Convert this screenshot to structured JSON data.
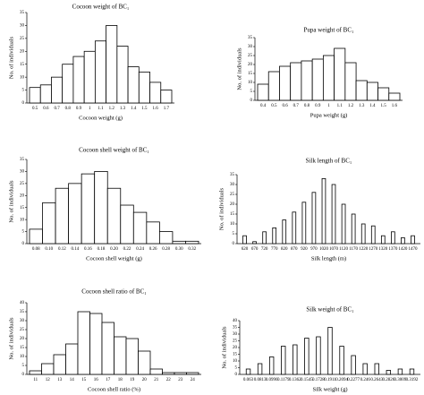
{
  "chart_data": [
    {
      "type": "bar",
      "title": "Cocoon weight of BC₁",
      "y_label": "No. of individuals",
      "x_label": "Cocoon weight (g)",
      "categories": [
        "0.5",
        "0.6",
        "0.7",
        "0.8",
        "0.9",
        "1",
        "1.1",
        "1.2",
        "1.3",
        "1.4",
        "1.5",
        "1.6",
        "1.7"
      ],
      "values": [
        6,
        7,
        10,
        15,
        18,
        20,
        24,
        30,
        22,
        14,
        12,
        8,
        5
      ],
      "color": "#ffffff",
      "ylim": [
        0,
        35
      ],
      "yticks": [
        0,
        5,
        10,
        15,
        20,
        25,
        30,
        35
      ]
    },
    {
      "type": "bar",
      "title": "Pupa weight of BC₁",
      "y_label": "No. of individuals",
      "x_label": "Pupa weight (g)",
      "categories": [
        "0.4",
        "0.5",
        "0.6",
        "0.7",
        "0.8",
        "0.9",
        "1",
        "1.1",
        "1.2",
        "1.3",
        "1.4",
        "1.5",
        "1.6"
      ],
      "values": [
        9,
        16,
        19,
        21,
        22,
        23,
        25,
        29,
        21,
        11,
        10,
        7,
        4
      ],
      "color": "#ffffff",
      "ylim": [
        0,
        35
      ],
      "yticks": [
        0,
        5,
        10,
        15,
        20,
        25,
        30,
        35
      ]
    },
    {
      "type": "bar",
      "title": "Cocoon shell weight of BC₁",
      "y_label": "No. of individuals",
      "x_label": "Cocoon shell weight (g)",
      "categories": [
        "0.08",
        "0.10",
        "0.12",
        "0.14",
        "0.16",
        "0.18",
        "0.20",
        "0.22",
        "0.24",
        "0.26",
        "0.28",
        "0.30",
        "0.32"
      ],
      "values": [
        6,
        17,
        23,
        25,
        29,
        30,
        23,
        16,
        13,
        9,
        5,
        1,
        1
      ],
      "color": "#ffffff",
      "ylim": [
        0,
        35
      ],
      "yticks": [
        0,
        5,
        10,
        15,
        20,
        25,
        30,
        35
      ]
    },
    {
      "type": "bar",
      "title": "Silk length of BC₁",
      "y_label": "No. of individuals",
      "x_label": "Silk length (m)",
      "categories": [
        "620",
        "670",
        "720",
        "770",
        "820",
        "870",
        "920",
        "970",
        "1020",
        "1070",
        "1120",
        "1170",
        "1220",
        "1270",
        "1320",
        "1370",
        "1420",
        "1470"
      ],
      "values": [
        4,
        1,
        6,
        8,
        12,
        16,
        21,
        26,
        33,
        30,
        20,
        15,
        10,
        9,
        4,
        6,
        3,
        4
      ],
      "color": "#ffffff",
      "ylim": [
        0,
        35
      ],
      "yticks": [
        0,
        5,
        10,
        15,
        20,
        25,
        30,
        35
      ]
    },
    {
      "type": "bar",
      "title": "Cocoon shell ratio of BC₁",
      "y_label": "No. of individuals",
      "x_label": "Cocoon shell ratio (%)",
      "categories": [
        "11",
        "12",
        "13",
        "14",
        "15",
        "16",
        "17",
        "18",
        "19",
        "20",
        "21",
        "22",
        "23",
        "24"
      ],
      "values": [
        2,
        6,
        11,
        17,
        35,
        34,
        29,
        21,
        20,
        13,
        3,
        1,
        1,
        1
      ],
      "color": "#ffffff",
      "ylim": [
        0,
        40
      ],
      "yticks": [
        0,
        5,
        10,
        15,
        20,
        25,
        30,
        35,
        40
      ]
    },
    {
      "type": "bar",
      "title": "Silk weight of BC₁",
      "y_label": "No. of individuals",
      "x_label": "Silk weight (g)",
      "categories": [
        "0.063",
        "0.0813",
        "0.0996",
        "0.1179",
        "0.1362",
        "0.1545",
        "0.1728",
        "0.1911",
        "0.2094",
        "0.2277",
        "0.246",
        "0.2643",
        "0.2826",
        "0.3009",
        "0.3192"
      ],
      "values": [
        4,
        8,
        13,
        21,
        22,
        27,
        28,
        35,
        21,
        14,
        8,
        8,
        3,
        4,
        4
      ],
      "color": "#ffffff",
      "ylim": [
        0,
        40
      ],
      "yticks": [
        0,
        5,
        10,
        15,
        20,
        25,
        30,
        35,
        40
      ]
    }
  ]
}
